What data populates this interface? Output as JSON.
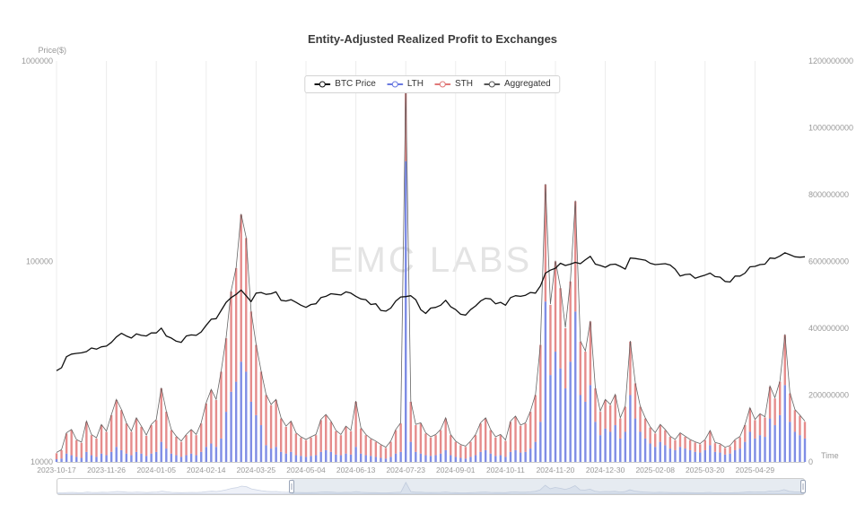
{
  "datazoom": {
    "start_percent": 31.4,
    "end_percent": 100
  },
  "chart_data": {
    "type": "mixed",
    "title": "Entity-Adjusted Realized Profit to Exchanges",
    "watermark": "EMC LABS",
    "grid": "vertical-gridlines-only",
    "legend": {
      "position": "top-center",
      "items": [
        {
          "label": "BTC Price",
          "color": "#111111"
        },
        {
          "label": "LTH",
          "color": "#6979e0"
        },
        {
          "label": "STH",
          "color": "#e07878"
        },
        {
          "label": "Aggregated",
          "color": "#555555"
        }
      ]
    },
    "left_axis": {
      "name": "Price($)",
      "scale": "log",
      "min": 10000,
      "max": 1000000,
      "tick_labels": [
        "1000000",
        "100000",
        "10000"
      ],
      "tick_values": [
        1000000,
        100000,
        10000
      ]
    },
    "right_axis": {
      "min": 0,
      "max": 1200000000,
      "tick_labels": [
        "1200000000",
        "1000000000",
        "800000000",
        "600000000",
        "400000000",
        "200000000",
        "0"
      ],
      "tick_values": [
        1200000000,
        1000000000,
        800000000,
        600000000,
        400000000,
        200000000,
        0
      ]
    },
    "x_axis": {
      "name": "Time",
      "start_date": "2023-10-17",
      "sample_interval_days": 4,
      "tick_every_n_samples": 10,
      "tick_labels": [
        "2023-10-17",
        "2023-11-26",
        "2024-01-05",
        "2024-02-14",
        "2024-03-25",
        "2024-05-04",
        "2024-06-13",
        "2024-07-23",
        "2024-09-01",
        "2024-10-11",
        "2024-11-20",
        "2024-12-30",
        "2025-02-08",
        "2025-03-20",
        "2025-04-29"
      ]
    },
    "series": [
      {
        "name": "BTC Price",
        "type": "line",
        "axis": "left",
        "color": "#111111",
        "value_unit": "USD",
        "values": [
          28500,
          29500,
          33500,
          34500,
          34800,
          35000,
          35500,
          37000,
          36500,
          37500,
          37800,
          39500,
          42000,
          43800,
          42500,
          41500,
          43500,
          42800,
          42500,
          44000,
          44000,
          46500,
          42500,
          41500,
          40000,
          39500,
          42500,
          43000,
          42800,
          44500,
          48000,
          51500,
          51800,
          57000,
          62500,
          66000,
          68500,
          72000,
          67500,
          63000,
          69500,
          70000,
          68500,
          69000,
          70500,
          64000,
          63500,
          64500,
          62500,
          60500,
          59000,
          61000,
          61500,
          66000,
          67000,
          69000,
          68500,
          68000,
          70500,
          69500,
          67000,
          65000,
          64500,
          61000,
          61500,
          57000,
          56500,
          58500,
          63500,
          66500,
          66800,
          67500,
          64500,
          57500,
          55000,
          58500,
          59000,
          60500,
          64000,
          59500,
          57500,
          54500,
          54000,
          57500,
          60000,
          63500,
          65500,
          65000,
          61500,
          62500,
          60500,
          66000,
          67500,
          67000,
          67800,
          70000,
          69500,
          75500,
          87500,
          90500,
          92500,
          98000,
          95500,
          97000,
          99000,
          97500,
          102000,
          106000,
          97000,
          95500,
          93500,
          96500,
          97000,
          94500,
          91500,
          104000,
          103500,
          102500,
          101500,
          98000,
          96500,
          97000,
          97500,
          96000,
          91500,
          84500,
          86000,
          86500,
          82500,
          84000,
          85500,
          87500,
          84000,
          83500,
          79500,
          79000,
          84500,
          84500,
          87500,
          94000,
          94500,
          96500,
          97000,
          104000,
          103500,
          106500,
          110500,
          108000,
          105500,
          105000,
          105500
        ]
      },
      {
        "name": "LTH",
        "type": "bar",
        "stack": "profit",
        "axis": "right",
        "color": "#6979e0",
        "value_unit": "USD millions",
        "values": [
          8,
          10,
          25,
          20,
          15,
          12,
          30,
          20,
          15,
          25,
          20,
          30,
          45,
          35,
          25,
          20,
          30,
          25,
          18,
          25,
          30,
          60,
          40,
          25,
          20,
          15,
          20,
          25,
          20,
          30,
          45,
          55,
          45,
          70,
          150,
          210,
          240,
          300,
          270,
          180,
          140,
          110,
          50,
          40,
          45,
          30,
          25,
          30,
          20,
          18,
          15,
          18,
          20,
          30,
          35,
          30,
          22,
          20,
          25,
          22,
          45,
          25,
          20,
          18,
          15,
          12,
          10,
          15,
          25,
          30,
          900,
          60,
          30,
          25,
          20,
          18,
          20,
          25,
          35,
          20,
          15,
          12,
          10,
          15,
          20,
          30,
          35,
          25,
          18,
          20,
          15,
          30,
          35,
          28,
          30,
          40,
          60,
          120,
          480,
          260,
          330,
          280,
          220,
          300,
          450,
          200,
          180,
          230,
          120,
          80,
          100,
          90,
          110,
          70,
          90,
          200,
          130,
          90,
          70,
          55,
          45,
          60,
          50,
          40,
          35,
          45,
          40,
          35,
          30,
          28,
          35,
          50,
          30,
          28,
          22,
          25,
          35,
          40,
          60,
          90,
          70,
          80,
          75,
          130,
          110,
          140,
          230,
          120,
          90,
          80,
          70
        ]
      },
      {
        "name": "STH",
        "type": "bar",
        "stack": "profit",
        "axis": "right",
        "color": "#e07878",
        "value_unit": "USD millions",
        "values": [
          18,
          25,
          60,
          75,
          50,
          45,
          90,
          60,
          55,
          85,
          70,
          110,
          140,
          120,
          90,
          70,
          100,
          80,
          60,
          85,
          95,
          160,
          110,
          70,
          55,
          45,
          60,
          70,
          60,
          85,
          130,
          160,
          140,
          200,
          220,
          300,
          340,
          440,
          400,
          270,
          210,
          160,
          150,
          130,
          140,
          100,
          80,
          90,
          65,
          55,
          50,
          55,
          60,
          95,
          105,
          90,
          70,
          60,
          80,
          70,
          135,
          75,
          60,
          50,
          45,
          38,
          32,
          45,
          70,
          85,
          220,
          120,
          80,
          90,
          65,
          55,
          60,
          70,
          95,
          60,
          45,
          38,
          35,
          45,
          60,
          85,
          95,
          70,
          55,
          60,
          48,
          90,
          100,
          80,
          85,
          110,
          140,
          230,
          350,
          210,
          270,
          240,
          180,
          240,
          330,
          160,
          150,
          190,
          100,
          70,
          85,
          80,
          90,
          60,
          75,
          160,
          105,
          75,
          60,
          48,
          40,
          50,
          45,
          35,
          30,
          40,
          35,
          30,
          28,
          25,
          30,
          42,
          26,
          24,
          20,
          22,
          30,
          34,
          50,
          70,
          55,
          62,
          58,
          95,
          80,
          100,
          150,
          85,
          65,
          58,
          50
        ]
      },
      {
        "name": "Aggregated",
        "type": "line",
        "axis": "right",
        "color": "#555555",
        "derived": "LTH + STH"
      }
    ]
  }
}
